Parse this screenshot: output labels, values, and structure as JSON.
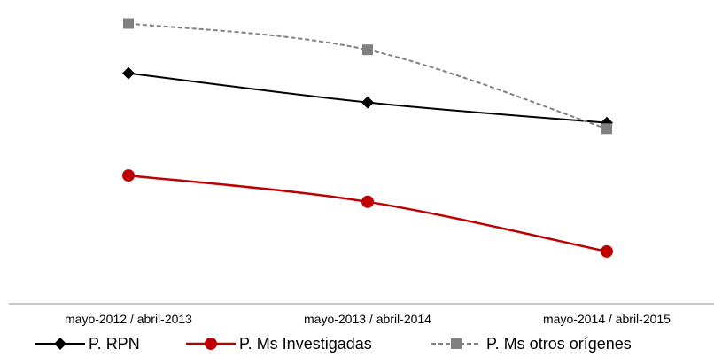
{
  "chart_data": {
    "type": "line",
    "categories": [
      "mayo-2012 / abril-2013",
      "mayo-2013 / abril-2014",
      "mayo-2014 / abril-2015"
    ],
    "ylim": [
      0,
      100
    ],
    "grid": false,
    "legend_position": "bottom",
    "series": [
      {
        "name": "P. RPN",
        "values": [
          78,
          68,
          61
        ],
        "color": "#000000",
        "marker": "diamond",
        "dash": "solid"
      },
      {
        "name": "P. Ms Investigadas",
        "values": [
          43,
          34,
          17
        ],
        "color": "#c00000",
        "marker": "circle",
        "dash": "solid"
      },
      {
        "name": "P. Ms otros orígenes",
        "values": [
          95,
          86,
          59
        ],
        "color": "#808080",
        "marker": "square",
        "dash": "dashed"
      }
    ]
  }
}
